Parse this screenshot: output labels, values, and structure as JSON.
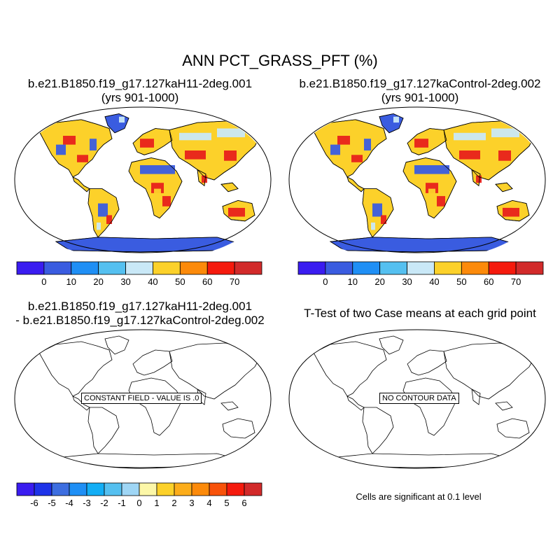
{
  "figure": {
    "title": "ANN PCT_GRASS_PFT (%)"
  },
  "panels": {
    "top_left": {
      "title_line1": "b.e21.B1850.f19_g17.127kaH11-2deg.001",
      "title_line2": "(yrs 901-1000)"
    },
    "top_right": {
      "title_line1": "b.e21.B1850.f19_g17.127kaControl-2deg.002",
      "title_line2": "(yrs 901-1000)"
    },
    "bottom_left": {
      "title_line1": "b.e21.B1850.f19_g17.127kaH11-2deg.001",
      "title_line2": "- b.e21.B1850.f19_g17.127kaControl-2deg.002",
      "annotation": "CONSTANT FIELD - VALUE IS .0"
    },
    "bottom_right": {
      "title_line1": "T-Test of two Case means at each grid point",
      "annotation": "NO CONTOUR DATA",
      "footnote": "Cells are significant at 0.1 level"
    }
  },
  "colorbars": {
    "field": {
      "labels": [
        "0",
        "10",
        "20",
        "30",
        "40",
        "50",
        "60",
        "70"
      ],
      "colors": [
        "#3a1cf0",
        "#3a5ce0",
        "#1f8ff5",
        "#55c0f0",
        "#c9e8f7",
        "#fcd12a",
        "#fc8a0a",
        "#f51a0d",
        "#d22a2a"
      ]
    },
    "difference": {
      "labels": [
        "-6",
        "-5",
        "-4",
        "-3",
        "-2",
        "-1",
        "0",
        "1",
        "2",
        "3",
        "4",
        "5",
        "6"
      ],
      "colors": [
        "#3a1cf0",
        "#1e33e8",
        "#3d6ee0",
        "#1f8ff5",
        "#13aef5",
        "#55c0f0",
        "#9fd6f5",
        "#fcf7a8",
        "#fcd12a",
        "#fcad1a",
        "#fc8a0a",
        "#f8520a",
        "#f51a0d",
        "#d22a2a"
      ]
    }
  },
  "map_colors": {
    "ocean": "#ffffff",
    "grass_high": "#e8211b",
    "grass_mid": "#fcd12a",
    "grass_low": "#3a5ce0",
    "grass_light": "#c9e8f7",
    "ice": "#3a5ce0",
    "coast": "#000000"
  }
}
